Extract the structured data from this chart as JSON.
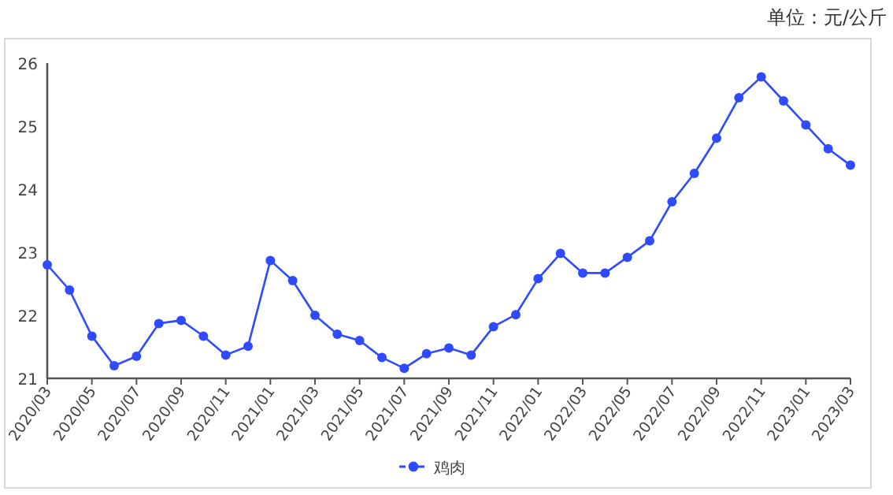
{
  "chart_data": {
    "type": "line",
    "ylabel": "单位：元/公斤",
    "x": [
      "2020-03",
      "2020-04",
      "2020-05",
      "2020-06",
      "2020-07",
      "2020-08",
      "2020-09",
      "2020-10",
      "2020-11",
      "2020-12",
      "2021-01",
      "2021-02",
      "2021-03",
      "2021-04",
      "2021-05",
      "2021-06",
      "2021-07",
      "2021-08",
      "2021-09",
      "2021-10",
      "2021-11",
      "2021-12",
      "2022-01",
      "2022-02",
      "2022-03",
      "2022-04",
      "2022-05",
      "2022-06",
      "2022-07",
      "2022-08",
      "2022-09",
      "2022-10",
      "2022-11",
      "2022-12",
      "2023-01",
      "2023-02",
      "2023-03"
    ],
    "series": [
      {
        "name": "鸡肉",
        "color": "#2f4bff",
        "values": [
          22.8,
          22.4,
          21.67,
          21.2,
          21.35,
          21.87,
          21.92,
          21.67,
          21.37,
          21.51,
          22.87,
          22.55,
          22.0,
          21.7,
          21.6,
          21.33,
          21.16,
          21.39,
          21.48,
          21.37,
          21.82,
          22.01,
          22.58,
          22.98,
          22.67,
          22.67,
          22.92,
          23.18,
          23.8,
          24.25,
          24.81,
          25.45,
          25.78,
          25.4,
          25.02,
          24.64,
          24.38
        ]
      }
    ],
    "xlim": [
      "2020-03",
      "2023-03"
    ],
    "xticks": [
      {
        "value": "2020-03",
        "label": "2020/03"
      },
      {
        "value": "2020-05",
        "label": "2020/05"
      },
      {
        "value": "2020-07",
        "label": "2020/07"
      },
      {
        "value": "2020-09",
        "label": "2020/09"
      },
      {
        "value": "2020-11",
        "label": "2020/11"
      },
      {
        "value": "2021-01",
        "label": "2021/01"
      },
      {
        "value": "2021-03",
        "label": "2021/03"
      },
      {
        "value": "2021-05",
        "label": "2021/05"
      },
      {
        "value": "2021-07",
        "label": "2021/07"
      },
      {
        "value": "2021-09",
        "label": "2021/09"
      },
      {
        "value": "2021-11",
        "label": "2021/11"
      },
      {
        "value": "2022-01",
        "label": "2022/01"
      },
      {
        "value": "2022-03",
        "label": "2022/03"
      },
      {
        "value": "2022-05",
        "label": "2022/05"
      },
      {
        "value": "2022-07",
        "label": "2022/07"
      },
      {
        "value": "2022-09",
        "label": "2022/09"
      },
      {
        "value": "2022-11",
        "label": "2022/11"
      },
      {
        "value": "2023-01",
        "label": "2023/01"
      },
      {
        "value": "2023-03",
        "label": "2023/03"
      }
    ],
    "ylim": [
      21,
      26
    ],
    "yticks": [
      21,
      22,
      23,
      24,
      25,
      26
    ],
    "marker": "circle",
    "legend": "bottom",
    "grid": false
  }
}
